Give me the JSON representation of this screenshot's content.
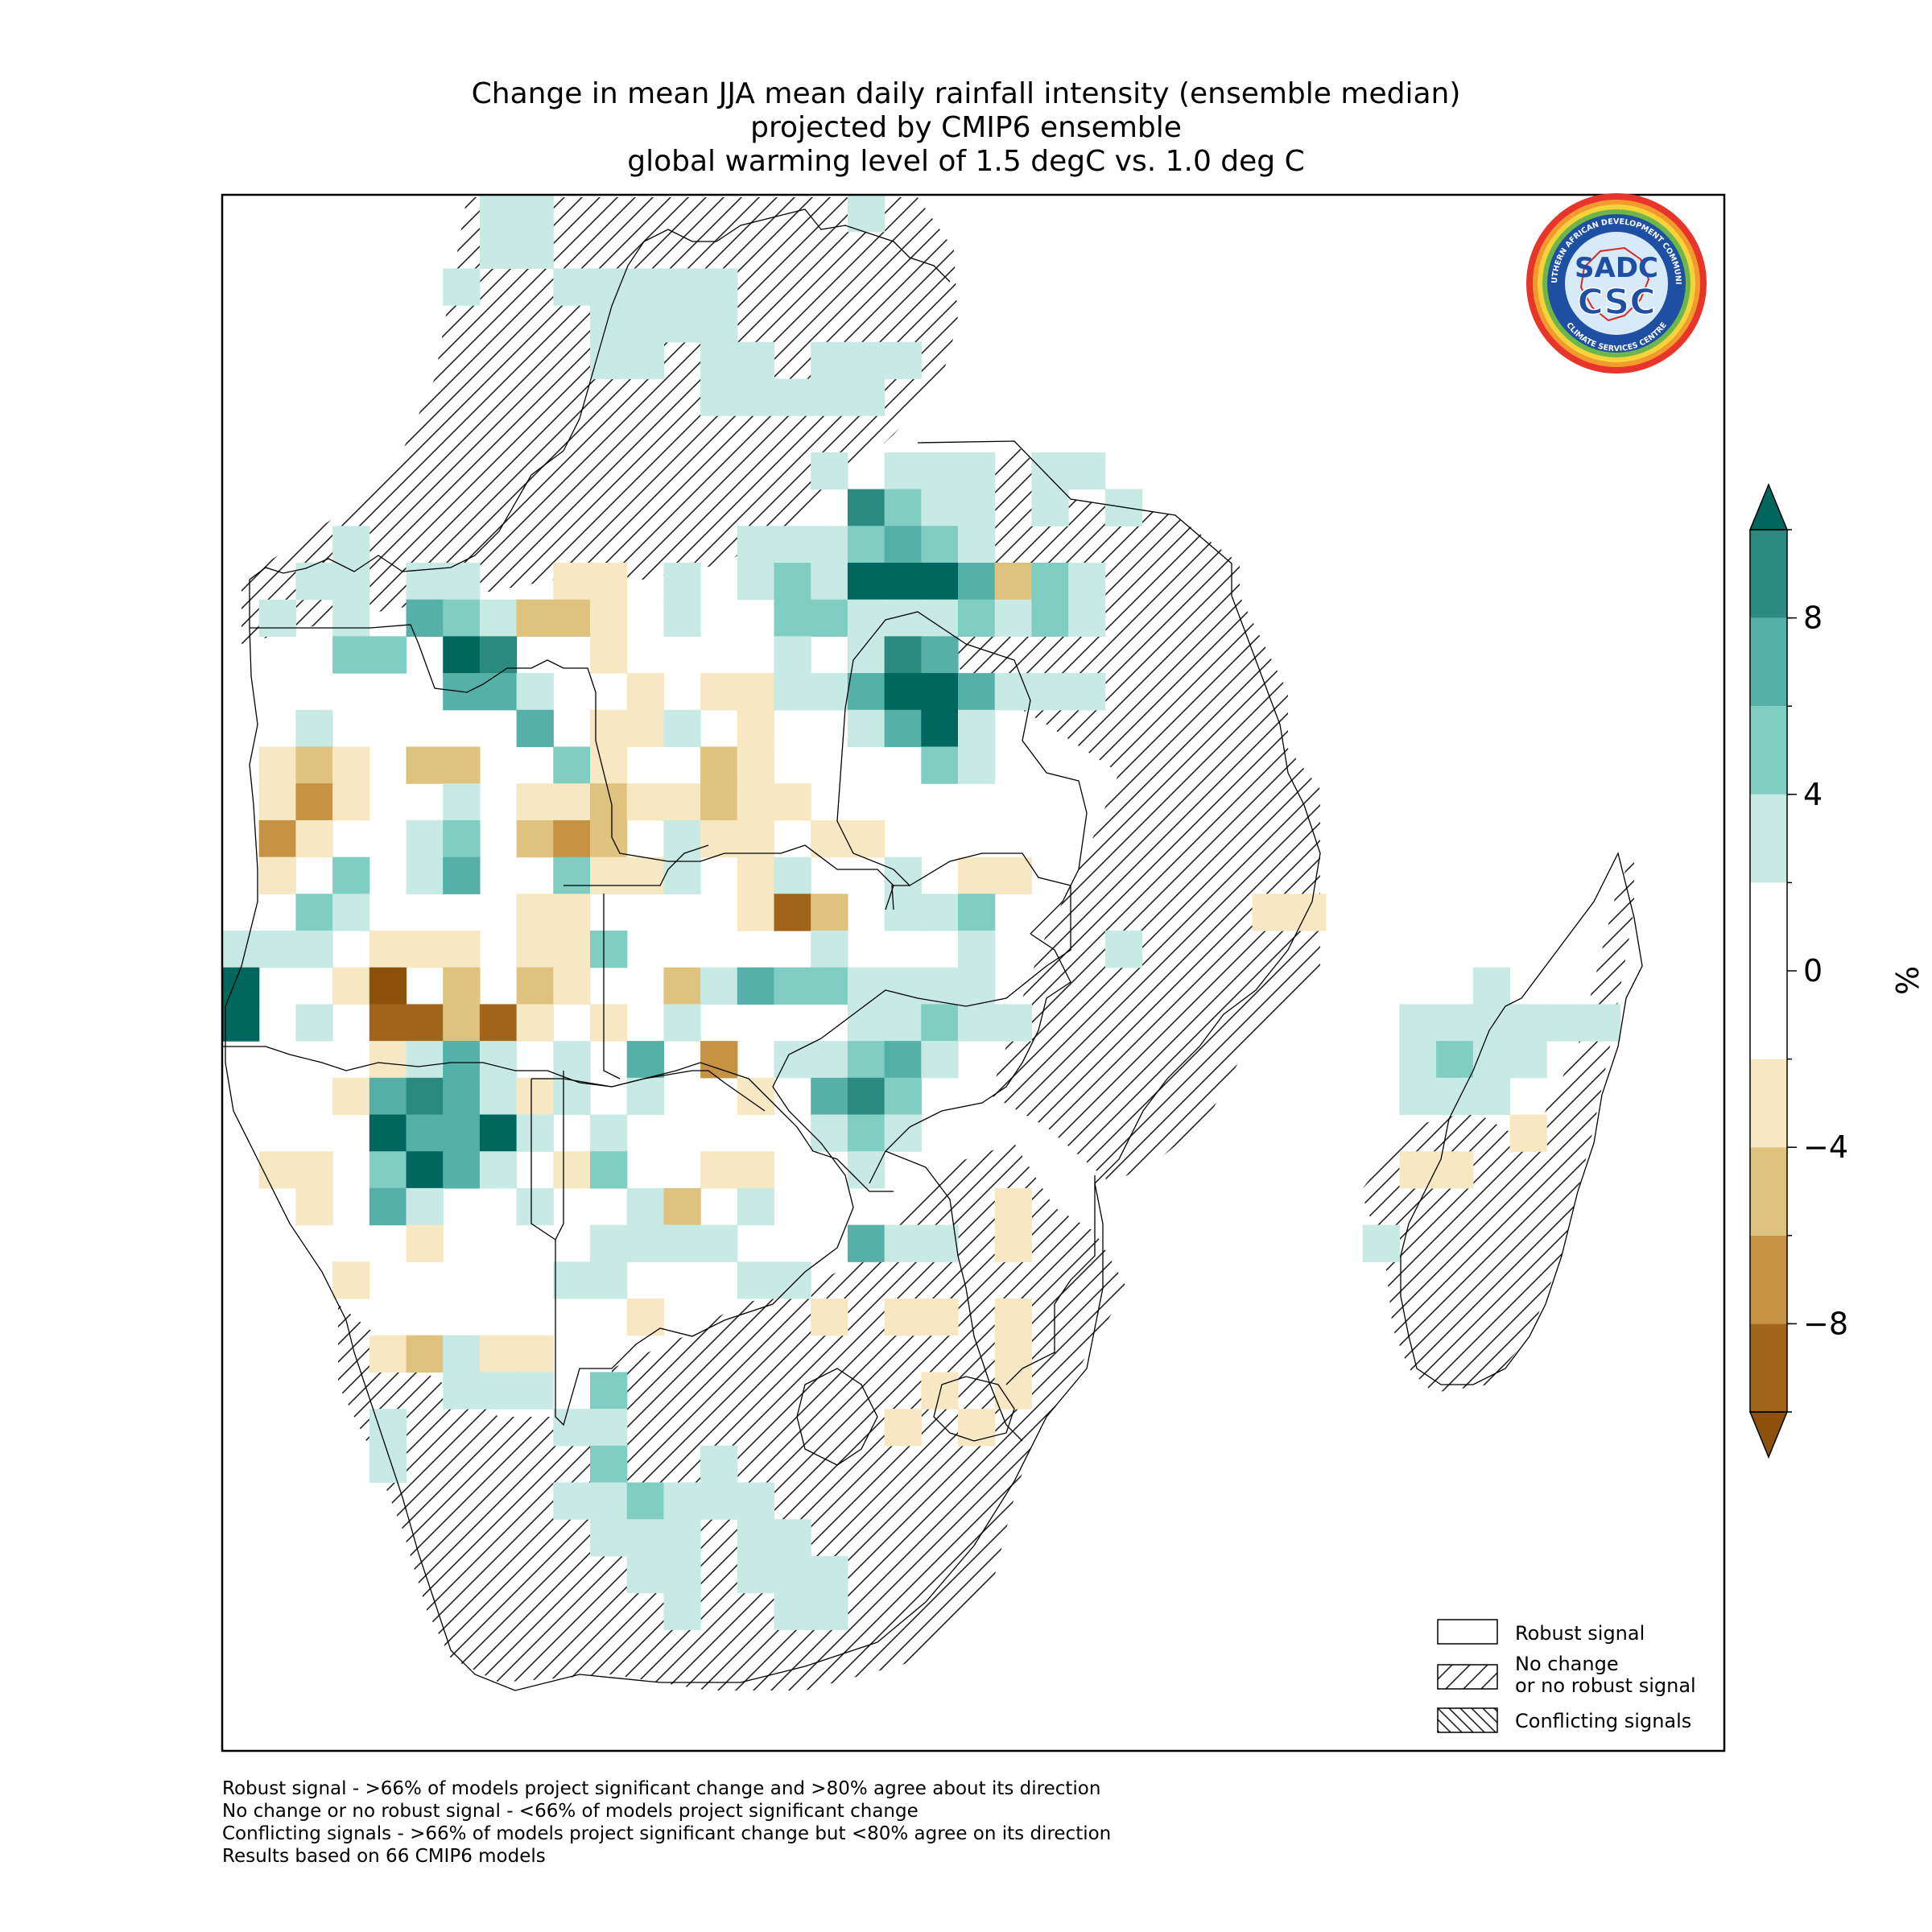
{
  "title": {
    "line1": "Change in mean JJA mean daily rainfall intensity (ensemble median)",
    "line2": "projected by CMIP6 ensemble",
    "line3": "global warming level of 1.5 degC vs. 1.0 deg C"
  },
  "logo": {
    "text_main_top": "SADC",
    "text_main_bottom": "CSC",
    "ring_text_top": "SOUTHERN AFRICAN DEVELOPMENT COMMUNITY",
    "ring_text_bottom": "CLIMATE SERVICES CENTRE"
  },
  "colorbar": {
    "unit": "%",
    "ticks": [
      "8",
      "4",
      "0",
      "−4",
      "−8"
    ],
    "tick_values": [
      8,
      4,
      0,
      -4,
      -8
    ],
    "range": [
      -10,
      10
    ],
    "colors": [
      "#a0641a",
      "#c69243",
      "#dfc27d",
      "#f6e8c3",
      "#ffffff",
      "#c7eae5",
      "#80cdc1",
      "#55b1a7",
      "#2a8a80"
    ],
    "extend_low_color": "#8c510a",
    "extend_high_color": "#01665e"
  },
  "legend": {
    "robust": "Robust signal",
    "no_change_line1": "No change",
    "no_change_line2": "or no robust signal",
    "conflicting": "Conflicting signals"
  },
  "notes": {
    "line1": "Robust signal - >66% of models project significant change and >80% agree about its direction",
    "line2": "No change or no robust signal - <66% of models project significant change",
    "line3": "Conflicting signals - >66% of models project significant change but <80% agree on its direction",
    "line4": "Results based on 66 CMIP6 models"
  }
}
